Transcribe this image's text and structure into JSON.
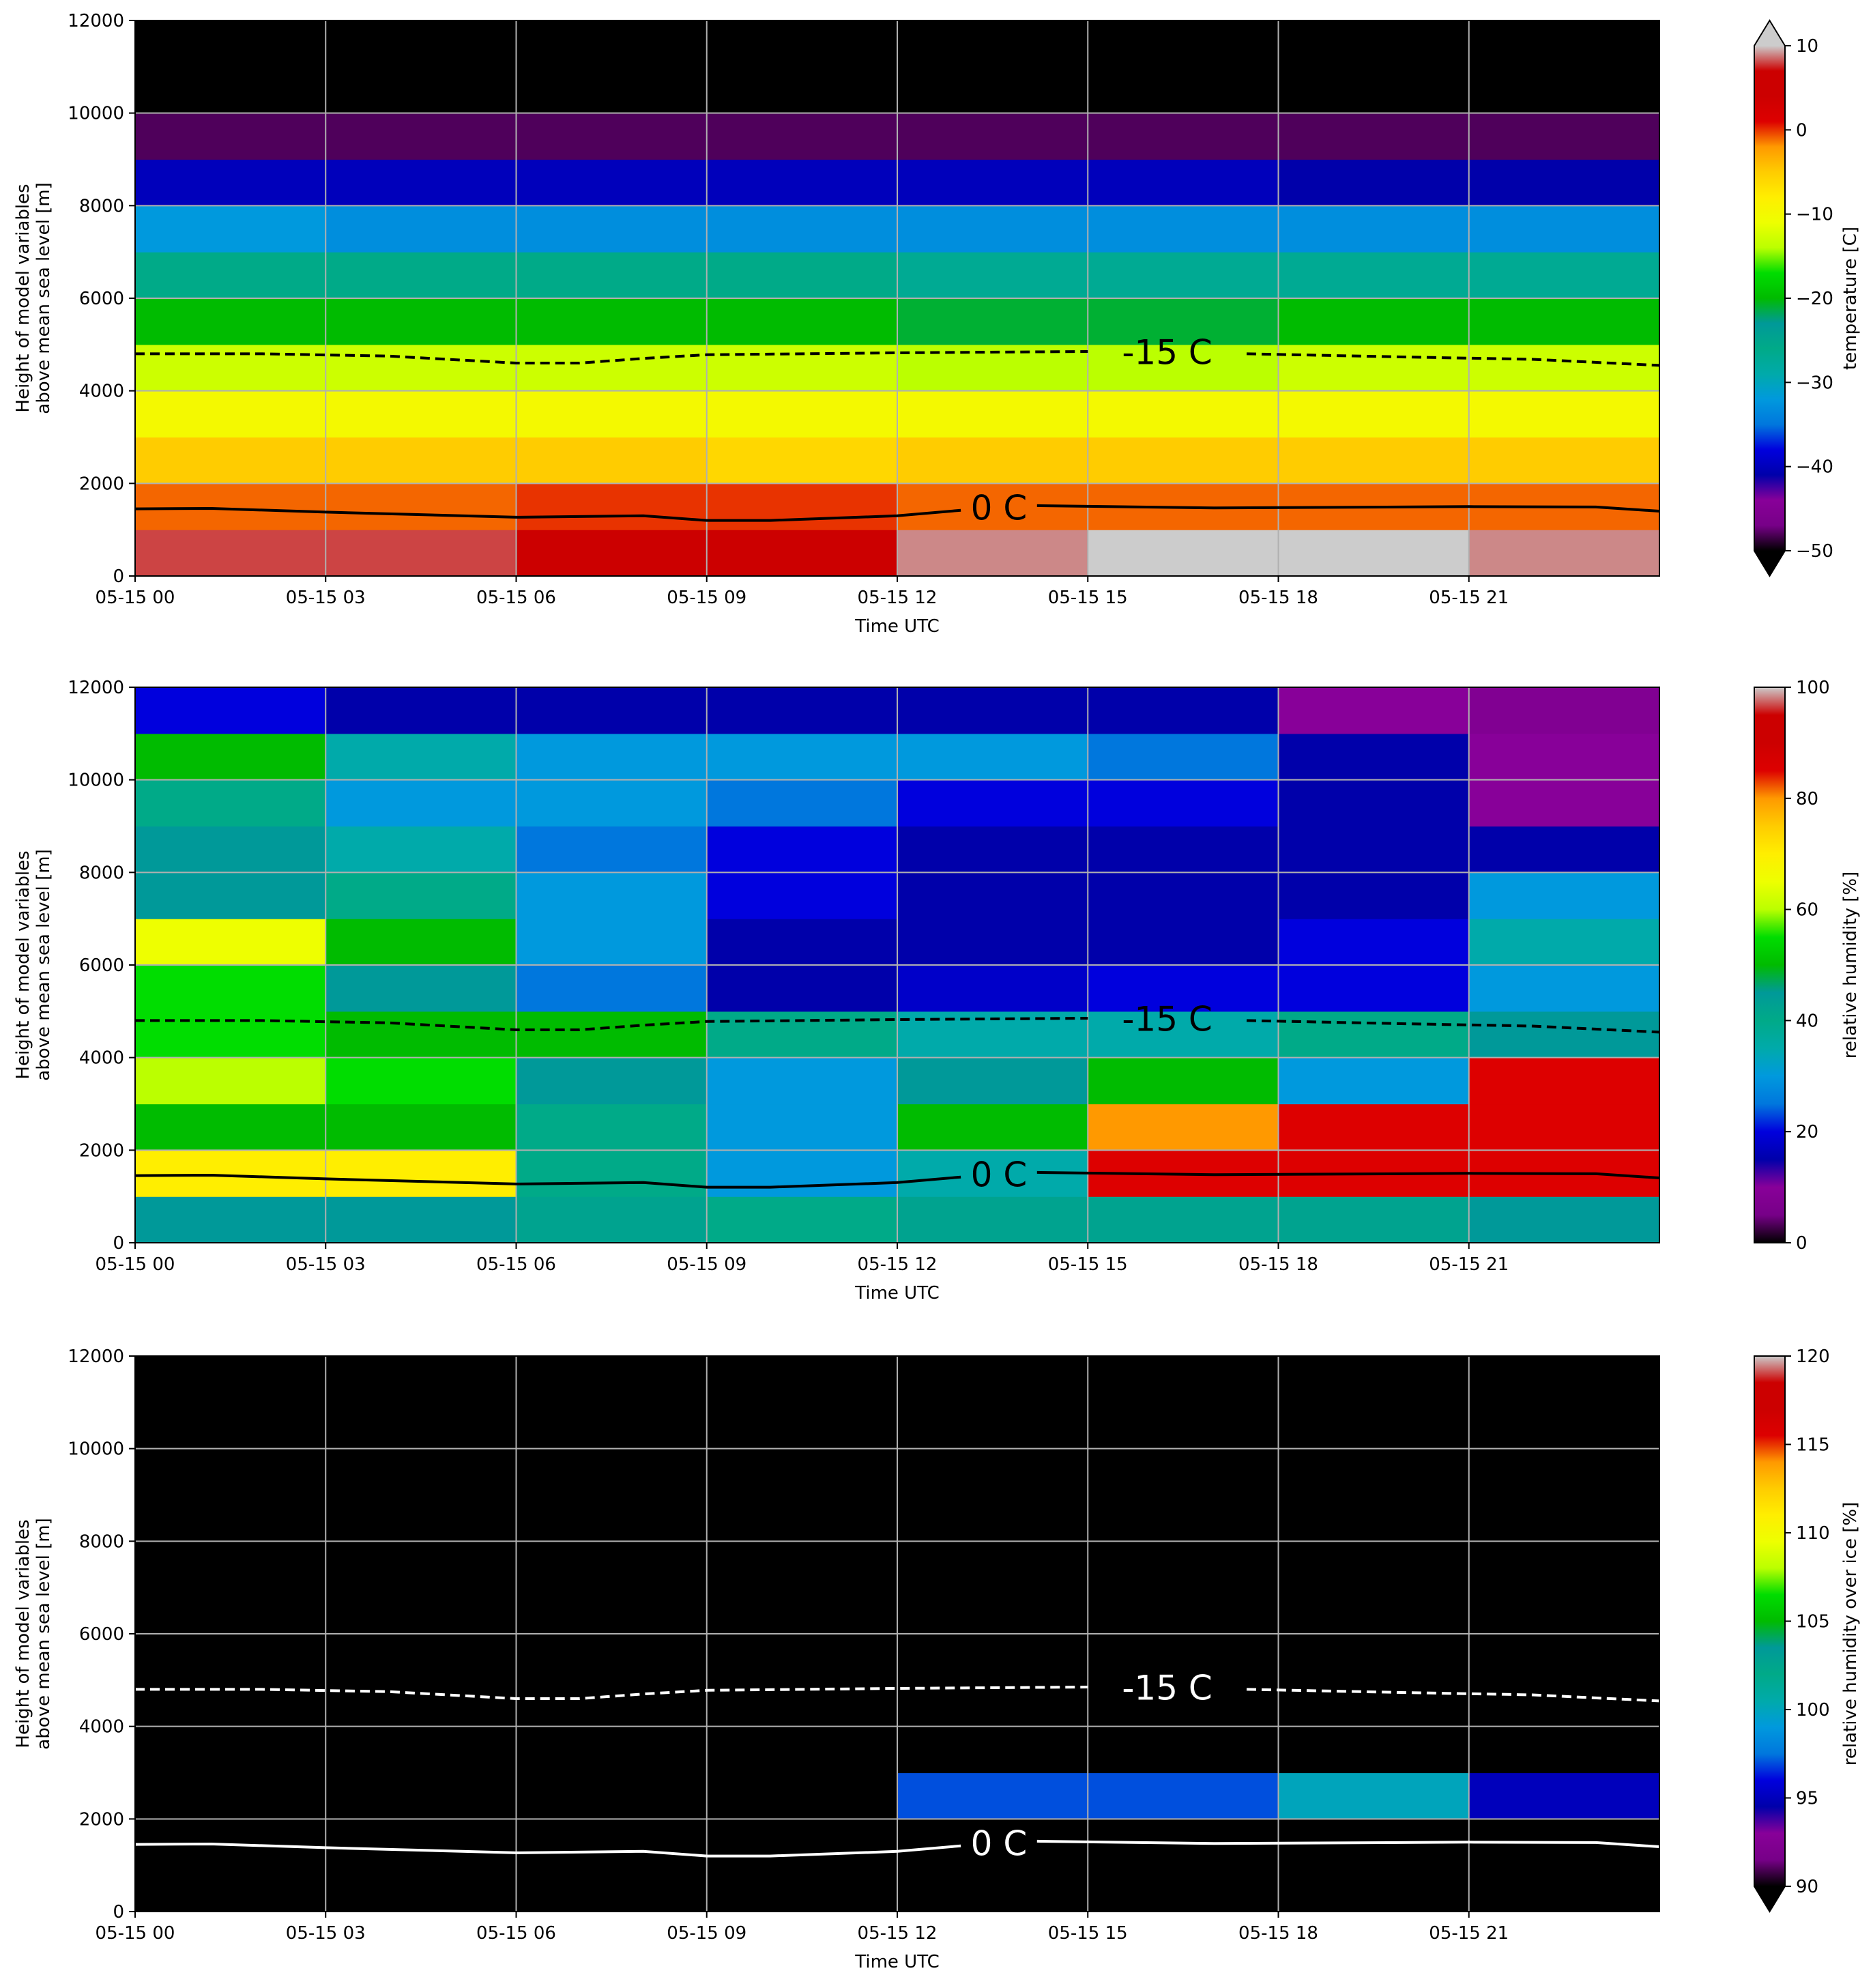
{
  "chart_data": [
    {
      "type": "heatmap",
      "xlabel": "Time UTC",
      "ylabel": [
        "Height of model variables",
        "above mean sea level [m]"
      ],
      "colorbar_label": "temperature [C]",
      "colormap": "nipy_spectral",
      "extend": "both",
      "grid": true,
      "clim": [
        -50,
        10
      ],
      "cticks": [
        {
          "value": -50,
          "label": "−50"
        },
        {
          "value": -40,
          "label": "−40"
        },
        {
          "value": -30,
          "label": "−30"
        },
        {
          "value": -20,
          "label": "−20"
        },
        {
          "value": -10,
          "label": "−10"
        },
        0,
        10
      ],
      "xlim": [
        0,
        24
      ],
      "xticks": [
        {
          "value": 0,
          "label": "05-15 00"
        },
        {
          "value": 3,
          "label": "05-15 03"
        },
        {
          "value": 6,
          "label": "05-15 06"
        },
        {
          "value": 9,
          "label": "05-15 09"
        },
        {
          "value": 12,
          "label": "05-15 12"
        },
        {
          "value": 15,
          "label": "05-15 15"
        },
        {
          "value": 18,
          "label": "05-15 18"
        },
        {
          "value": 21,
          "label": "05-15 21"
        }
      ],
      "ylim": [
        0,
        12000
      ],
      "yticks": [
        0,
        2000,
        4000,
        6000,
        8000,
        10000,
        12000
      ],
      "x": [
        1.5,
        4.5,
        7.5,
        10.5,
        13.5,
        16.5,
        19.5,
        22.5
      ],
      "y": [
        500,
        1500,
        2500,
        3500,
        4500,
        5500,
        6500,
        7500,
        8500,
        9500,
        10500,
        11500
      ],
      "z": [
        [
          8,
          8,
          7,
          7,
          9,
          10,
          10,
          9
        ],
        [
          -1,
          -1,
          0,
          0,
          -1,
          -1,
          -1,
          -1
        ],
        [
          -5,
          -5,
          -5,
          -6,
          -5,
          -5,
          -5,
          -5
        ],
        [
          -10,
          -10,
          -10,
          -10,
          -10,
          -10,
          -10,
          -10
        ],
        [
          -13,
          -13,
          -13,
          -13,
          -14,
          -14,
          -13,
          -13
        ],
        [
          -20,
          -20,
          -20,
          -20,
          -21,
          -21,
          -20,
          -20
        ],
        [
          -26,
          -26,
          -26,
          -26,
          -27,
          -27,
          -27,
          -27
        ],
        [
          -32,
          -33,
          -33,
          -33,
          -33,
          -33,
          -33,
          -33
        ],
        [
          -40,
          -40,
          -40,
          -40,
          -40,
          -40,
          -41,
          -41
        ],
        [
          -48,
          -48,
          -48,
          -48,
          -48,
          -48,
          -48,
          -48
        ],
        [
          -55,
          -55,
          -55,
          -55,
          -55,
          -55,
          -55,
          -54
        ],
        [
          -57,
          -57,
          -57,
          -57,
          -57,
          -57,
          -55,
          -52
        ]
      ],
      "contours": [
        {
          "name": "-15 C",
          "style": "dashed",
          "color": "#000000",
          "x": [
            0,
            2,
            4,
            6,
            7,
            8,
            9,
            12,
            15,
            null,
            17.5,
            20,
            22,
            24
          ],
          "y": [
            4800,
            4800,
            4750,
            4600,
            4600,
            4700,
            4780,
            4820,
            4850,
            null,
            4800,
            4730,
            4680,
            4550
          ]
        },
        {
          "name": "0 C",
          "style": "solid",
          "color": "#000000",
          "x": [
            0,
            1.2,
            3,
            6,
            8,
            9,
            10,
            12,
            13,
            null,
            14.2,
            17,
            21,
            23,
            24
          ],
          "y": [
            1450,
            1460,
            1380,
            1270,
            1300,
            1200,
            1200,
            1300,
            1420,
            null,
            1520,
            1470,
            1500,
            1490,
            1400
          ]
        }
      ]
    },
    {
      "type": "heatmap",
      "xlabel": "Time UTC",
      "ylabel": [
        "Height of model variables",
        "above mean sea level [m]"
      ],
      "colorbar_label": "relative humidity [%]",
      "colormap": "nipy_spectral",
      "extend": "neither",
      "grid": true,
      "clim": [
        0,
        100
      ],
      "cticks": [
        0,
        20,
        40,
        60,
        80,
        100
      ],
      "xlim": [
        0,
        24
      ],
      "xticks": [
        {
          "value": 0,
          "label": "05-15 00"
        },
        {
          "value": 3,
          "label": "05-15 03"
        },
        {
          "value": 6,
          "label": "05-15 06"
        },
        {
          "value": 9,
          "label": "05-15 09"
        },
        {
          "value": 12,
          "label": "05-15 12"
        },
        {
          "value": 15,
          "label": "05-15 15"
        },
        {
          "value": 18,
          "label": "05-15 18"
        },
        {
          "value": 21,
          "label": "05-15 21"
        }
      ],
      "ylim": [
        0,
        12000
      ],
      "yticks": [
        0,
        2000,
        4000,
        6000,
        8000,
        10000,
        12000
      ],
      "x": [
        1.5,
        4.5,
        7.5,
        10.5,
        13.5,
        16.5,
        19.5,
        22.5
      ],
      "y": [
        500,
        1500,
        2500,
        3500,
        4500,
        5500,
        6500,
        7500,
        8500,
        9500,
        10500,
        11500
      ],
      "z": [
        [
          45,
          45,
          42,
          40,
          42,
          42,
          42,
          45
        ],
        [
          70,
          70,
          40,
          30,
          35,
          85,
          85,
          85
        ],
        [
          50,
          50,
          40,
          30,
          50,
          80,
          85,
          85
        ],
        [
          60,
          55,
          45,
          30,
          45,
          50,
          30,
          85
        ],
        [
          55,
          50,
          50,
          40,
          35,
          35,
          40,
          45
        ],
        [
          55,
          45,
          25,
          15,
          18,
          20,
          20,
          30
        ],
        [
          65,
          50,
          30,
          15,
          15,
          15,
          20,
          35
        ],
        [
          45,
          40,
          30,
          20,
          15,
          15,
          15,
          30
        ],
        [
          45,
          35,
          25,
          20,
          15,
          15,
          15,
          15
        ],
        [
          40,
          30,
          30,
          25,
          20,
          20,
          15,
          10
        ],
        [
          50,
          35,
          30,
          30,
          30,
          25,
          15,
          10
        ],
        [
          20,
          15,
          15,
          15,
          15,
          15,
          10,
          8
        ]
      ],
      "contours": [
        {
          "name": "-15 C",
          "style": "dashed",
          "color": "#000000",
          "x": [
            0,
            2,
            4,
            6,
            7,
            8,
            9,
            12,
            15,
            null,
            17.5,
            20,
            22,
            24
          ],
          "y": [
            4800,
            4800,
            4750,
            4600,
            4600,
            4700,
            4780,
            4820,
            4850,
            null,
            4800,
            4730,
            4680,
            4550
          ]
        },
        {
          "name": "0 C",
          "style": "solid",
          "color": "#000000",
          "x": [
            0,
            1.2,
            3,
            6,
            8,
            9,
            10,
            12,
            13,
            null,
            14.2,
            17,
            21,
            23,
            24
          ],
          "y": [
            1450,
            1460,
            1380,
            1270,
            1300,
            1200,
            1200,
            1300,
            1420,
            null,
            1520,
            1470,
            1500,
            1490,
            1400
          ]
        }
      ]
    },
    {
      "type": "heatmap",
      "xlabel": "Time UTC",
      "ylabel": [
        "Height of model variables",
        "above mean sea level [m]"
      ],
      "colorbar_label": "relative humidity over ice [%]",
      "colormap": "nipy_spectral",
      "extend": "min",
      "grid": true,
      "clim": [
        90,
        120
      ],
      "cticks": [
        90,
        95,
        100,
        105,
        110,
        115,
        120
      ],
      "xlim": [
        0,
        24
      ],
      "xticks": [
        {
          "value": 0,
          "label": "05-15 00"
        },
        {
          "value": 3,
          "label": "05-15 03"
        },
        {
          "value": 6,
          "label": "05-15 06"
        },
        {
          "value": 9,
          "label": "05-15 09"
        },
        {
          "value": 12,
          "label": "05-15 12"
        },
        {
          "value": 15,
          "label": "05-15 15"
        },
        {
          "value": 18,
          "label": "05-15 18"
        },
        {
          "value": 21,
          "label": "05-15 21"
        }
      ],
      "ylim": [
        0,
        12000
      ],
      "yticks": [
        0,
        2000,
        4000,
        6000,
        8000,
        10000,
        12000
      ],
      "x": [
        1.5,
        4.5,
        7.5,
        10.5,
        13.5,
        16.5,
        19.5,
        22.5
      ],
      "y": [
        500,
        1500,
        2500,
        3500,
        4500,
        5500,
        6500,
        7500,
        8500,
        9500,
        10500,
        11500
      ],
      "z": [
        [
          60,
          60,
          60,
          60,
          60,
          60,
          60,
          60
        ],
        [
          60,
          60,
          60,
          60,
          60,
          60,
          60,
          60
        ],
        [
          60,
          60,
          60,
          60,
          97,
          97,
          100,
          95
        ],
        [
          60,
          60,
          60,
          60,
          60,
          60,
          60,
          60
        ],
        [
          60,
          60,
          60,
          60,
          60,
          60,
          60,
          60
        ],
        [
          60,
          60,
          60,
          60,
          60,
          60,
          60,
          60
        ],
        [
          60,
          60,
          60,
          60,
          60,
          60,
          60,
          60
        ],
        [
          60,
          60,
          60,
          60,
          60,
          60,
          60,
          60
        ],
        [
          60,
          60,
          60,
          60,
          60,
          60,
          60,
          60
        ],
        [
          60,
          60,
          60,
          60,
          60,
          60,
          60,
          60
        ],
        [
          60,
          60,
          60,
          60,
          60,
          60,
          60,
          60
        ],
        [
          60,
          60,
          60,
          60,
          60,
          60,
          60,
          60
        ]
      ],
      "contours": [
        {
          "name": "-15 C",
          "style": "dashed",
          "color": "#ffffff",
          "x": [
            0,
            2,
            4,
            6,
            7,
            8,
            9,
            12,
            15,
            null,
            17.5,
            20,
            22,
            24
          ],
          "y": [
            4800,
            4800,
            4750,
            4600,
            4600,
            4700,
            4780,
            4820,
            4850,
            null,
            4800,
            4730,
            4680,
            4550
          ]
        },
        {
          "name": "0 C",
          "style": "solid",
          "color": "#ffffff",
          "x": [
            0,
            1.2,
            3,
            6,
            8,
            9,
            10,
            12,
            13,
            null,
            14.2,
            17,
            21,
            23,
            24
          ],
          "y": [
            1450,
            1460,
            1380,
            1270,
            1300,
            1200,
            1200,
            1300,
            1420,
            null,
            1520,
            1470,
            1500,
            1490,
            1400
          ]
        }
      ]
    }
  ]
}
